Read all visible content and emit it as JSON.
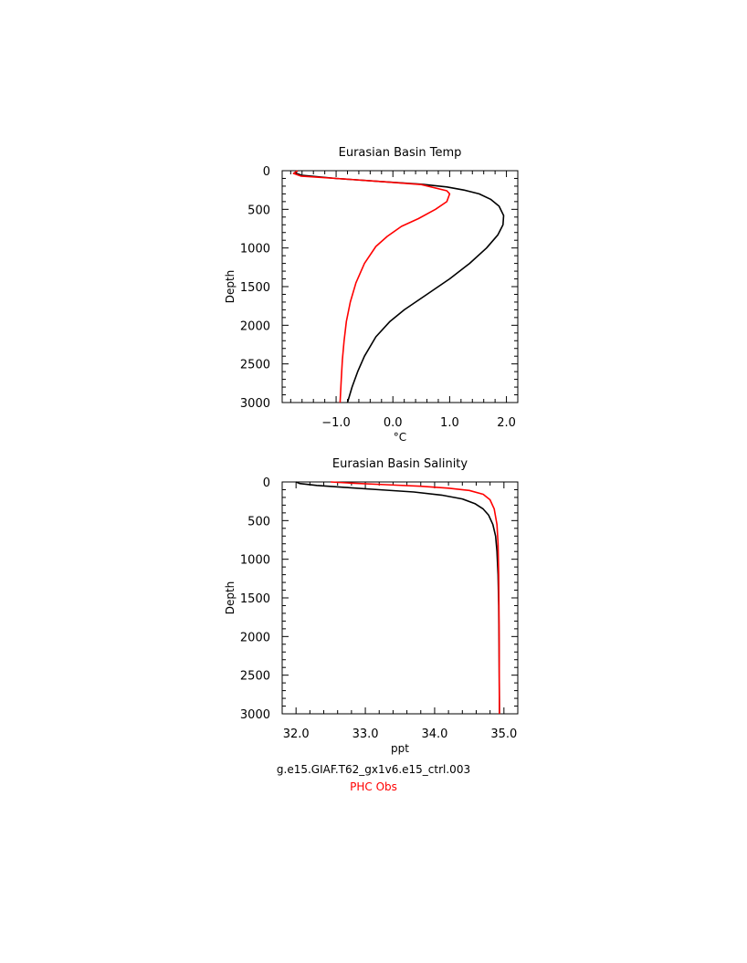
{
  "colors": {
    "model": "#000000",
    "obs": "#ff0000",
    "axis": "#000000"
  },
  "legend": {
    "model_label": "g.e15.GIAF.T62_gx1v6.e15_ctrl.003",
    "obs_label": "PHC Obs"
  },
  "chart_data": [
    {
      "type": "line",
      "title": "Eurasian Basin Temp",
      "xlabel": "°C",
      "ylabel": "Depth",
      "xlim": [
        -1.95,
        2.2
      ],
      "ylim": [
        3000,
        0
      ],
      "y_inverted": true,
      "xticks": [
        -1.0,
        0.0,
        1.0,
        2.0
      ],
      "xtick_labels": [
        "−1.0",
        "0.0",
        "1.0",
        "2.0"
      ],
      "yticks": [
        0,
        500,
        1000,
        1500,
        2000,
        2500,
        3000
      ],
      "ytick_labels": [
        "0",
        "500",
        "1000",
        "1500",
        "2000",
        "2500",
        "3000"
      ],
      "series": [
        {
          "color": "#000000",
          "x": [
            -1.68,
            -1.72,
            -1.6,
            -1.0,
            -0.2,
            0.5,
            0.95,
            1.25,
            1.52,
            1.72,
            1.87,
            1.95,
            1.94,
            1.85,
            1.65,
            1.35,
            1.0,
            0.6,
            0.2,
            -0.05,
            -0.3,
            -0.5,
            -0.62,
            -0.72,
            -0.8
          ],
          "y": [
            0,
            30,
            60,
            100,
            140,
            175,
            210,
            250,
            300,
            370,
            460,
            580,
            700,
            830,
            1000,
            1200,
            1400,
            1600,
            1800,
            1950,
            2150,
            2400,
            2600,
            2800,
            3000
          ]
        },
        {
          "color": "#ff0000",
          "x": [
            -1.68,
            -1.75,
            -1.62,
            -1.0,
            -0.2,
            0.5,
            0.95,
            1.0,
            0.95,
            0.75,
            0.45,
            0.15,
            -0.1,
            -0.3,
            -0.5,
            -0.65,
            -0.75,
            -0.82,
            -0.86,
            -0.89,
            -0.91,
            -0.93
          ],
          "y": [
            0,
            35,
            70,
            100,
            140,
            180,
            260,
            300,
            400,
            500,
            620,
            720,
            850,
            980,
            1200,
            1450,
            1700,
            1950,
            2200,
            2450,
            2700,
            3000
          ]
        }
      ]
    },
    {
      "type": "line",
      "title": "Eurasian Basin Salinity",
      "xlabel": "ppt",
      "ylabel": "Depth",
      "xlim": [
        31.8,
        35.2
      ],
      "ylim": [
        3000,
        0
      ],
      "y_inverted": true,
      "xticks": [
        32.0,
        33.0,
        34.0,
        35.0
      ],
      "xtick_labels": [
        "32.0",
        "33.0",
        "34.0",
        "35.0"
      ],
      "yticks": [
        0,
        500,
        1000,
        1500,
        2000,
        2500,
        3000
      ],
      "ytick_labels": [
        "0",
        "500",
        "1000",
        "1500",
        "2000",
        "2500",
        "3000"
      ],
      "series": [
        {
          "color": "#000000",
          "x": [
            32.0,
            32.05,
            32.3,
            32.7,
            33.2,
            33.7,
            34.1,
            34.4,
            34.58,
            34.7,
            34.78,
            34.84,
            34.88,
            34.9,
            34.915,
            34.925,
            34.93,
            34.935
          ],
          "y": [
            0,
            20,
            45,
            70,
            100,
            130,
            170,
            220,
            280,
            350,
            430,
            550,
            700,
            900,
            1200,
            1600,
            2100,
            3000
          ]
        },
        {
          "color": "#ff0000",
          "x": [
            32.5,
            32.8,
            33.3,
            33.8,
            34.2,
            34.5,
            34.7,
            34.8,
            34.86,
            34.9,
            34.915,
            34.925,
            34.93,
            34.935
          ],
          "y": [
            0,
            15,
            35,
            55,
            80,
            110,
            160,
            230,
            350,
            550,
            800,
            1200,
            1800,
            3000
          ]
        }
      ]
    }
  ]
}
